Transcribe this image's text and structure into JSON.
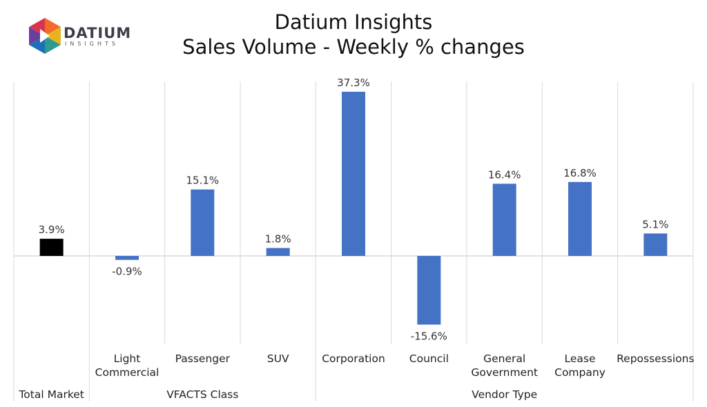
{
  "logo": {
    "word": "DATIUM",
    "sub": "INSIGHTS"
  },
  "title": "Datium Insights",
  "subtitle": "Sales Volume - Weekly % changes",
  "chart_data": {
    "type": "bar",
    "categories": [
      "Total Market",
      "Light Commercial",
      "Passenger",
      "SUV",
      "Corporation",
      "Council",
      "General Government",
      "Lease Company",
      "Repossessions"
    ],
    "category_lines": [
      [
        "Total Market"
      ],
      [
        "Light",
        "Commercial"
      ],
      [
        "Passenger"
      ],
      [
        "SUV"
      ],
      [
        "Corporation"
      ],
      [
        "Council"
      ],
      [
        "General",
        "Government"
      ],
      [
        "Lease",
        "Company"
      ],
      [
        "Repossessions"
      ]
    ],
    "values": [
      3.9,
      -0.9,
      15.1,
      1.8,
      37.3,
      -15.6,
      16.4,
      16.8,
      5.1
    ],
    "labels": [
      "3.9%",
      "-0.9%",
      "15.1%",
      "1.8%",
      "37.3%",
      "-15.6%",
      "16.4%",
      "16.8%",
      "5.1%"
    ],
    "groups": [
      {
        "name": "",
        "members": [
          "Total Market"
        ]
      },
      {
        "name": "VFACTS Class",
        "members": [
          "Light Commercial",
          "Passenger",
          "SUV"
        ]
      },
      {
        "name": "Vendor Type",
        "members": [
          "Corporation",
          "Council",
          "General Government",
          "Lease Company",
          "Repossessions"
        ]
      }
    ],
    "colors": {
      "highlight": "#000000",
      "bars": "#4472C4"
    },
    "grid": false
  }
}
